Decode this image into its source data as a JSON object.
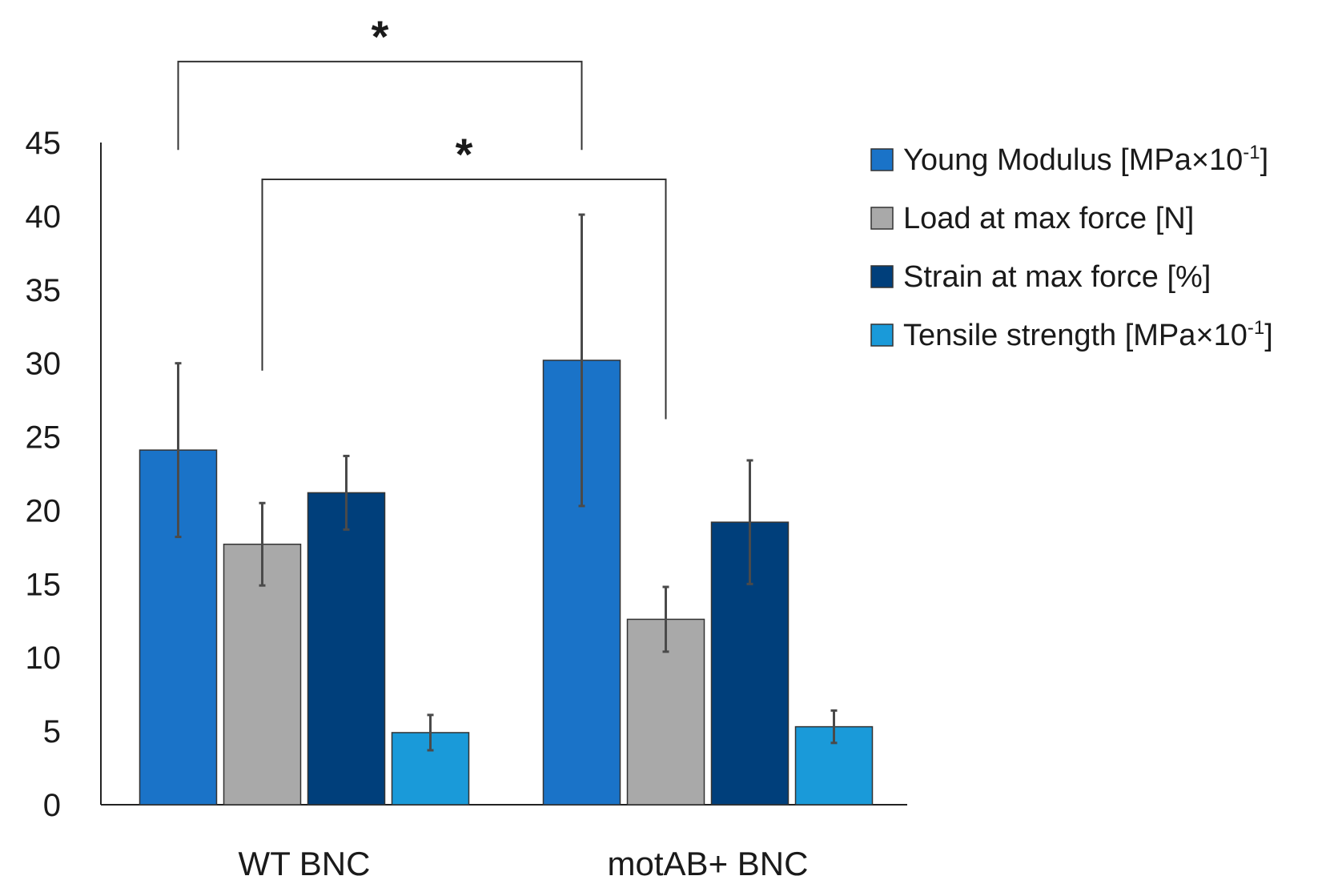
{
  "chart_data": {
    "type": "bar",
    "title": "",
    "xlabel": "",
    "ylabel": "",
    "ylim": [
      0,
      45
    ],
    "yticks": [
      0,
      5,
      10,
      15,
      20,
      25,
      30,
      35,
      40,
      45
    ],
    "categories": [
      "WT BNC",
      "motAB+ BNC"
    ],
    "series": [
      {
        "name": "Young Modulus [MPa×10",
        "superscript": "-1",
        "suffix": "]",
        "color": "#1a73c8",
        "values": [
          24.1,
          30.2
        ],
        "errors": [
          5.9,
          9.9
        ]
      },
      {
        "name": "Load at max force [N]",
        "superscript": "",
        "suffix": "",
        "color": "#a9a9a9",
        "values": [
          17.7,
          12.6
        ],
        "errors": [
          2.8,
          2.2
        ]
      },
      {
        "name": "Strain at max force [%]",
        "superscript": "",
        "suffix": "",
        "color": "#003f7b",
        "values": [
          21.2,
          19.2
        ],
        "errors": [
          2.5,
          4.2
        ]
      },
      {
        "name": "Tensile strength [MPa×10",
        "superscript": "-1",
        "suffix": "]",
        "color": "#1a9ad9",
        "values": [
          4.9,
          5.3
        ],
        "errors": [
          1.2,
          1.1
        ]
      }
    ],
    "legend_position": "right",
    "annotations": [
      {
        "text": "*",
        "from": {
          "category": 0,
          "series": 0
        },
        "to": {
          "category": 1,
          "series": 0
        },
        "level": 50.5,
        "drop_from": 44.5,
        "drop_to": 44.5
      },
      {
        "text": "*",
        "from": {
          "category": 0,
          "series": 1
        },
        "to": {
          "category": 1,
          "series": 1
        },
        "level": 42.5,
        "drop_from": 29.5,
        "drop_to": 26.2
      }
    ]
  }
}
